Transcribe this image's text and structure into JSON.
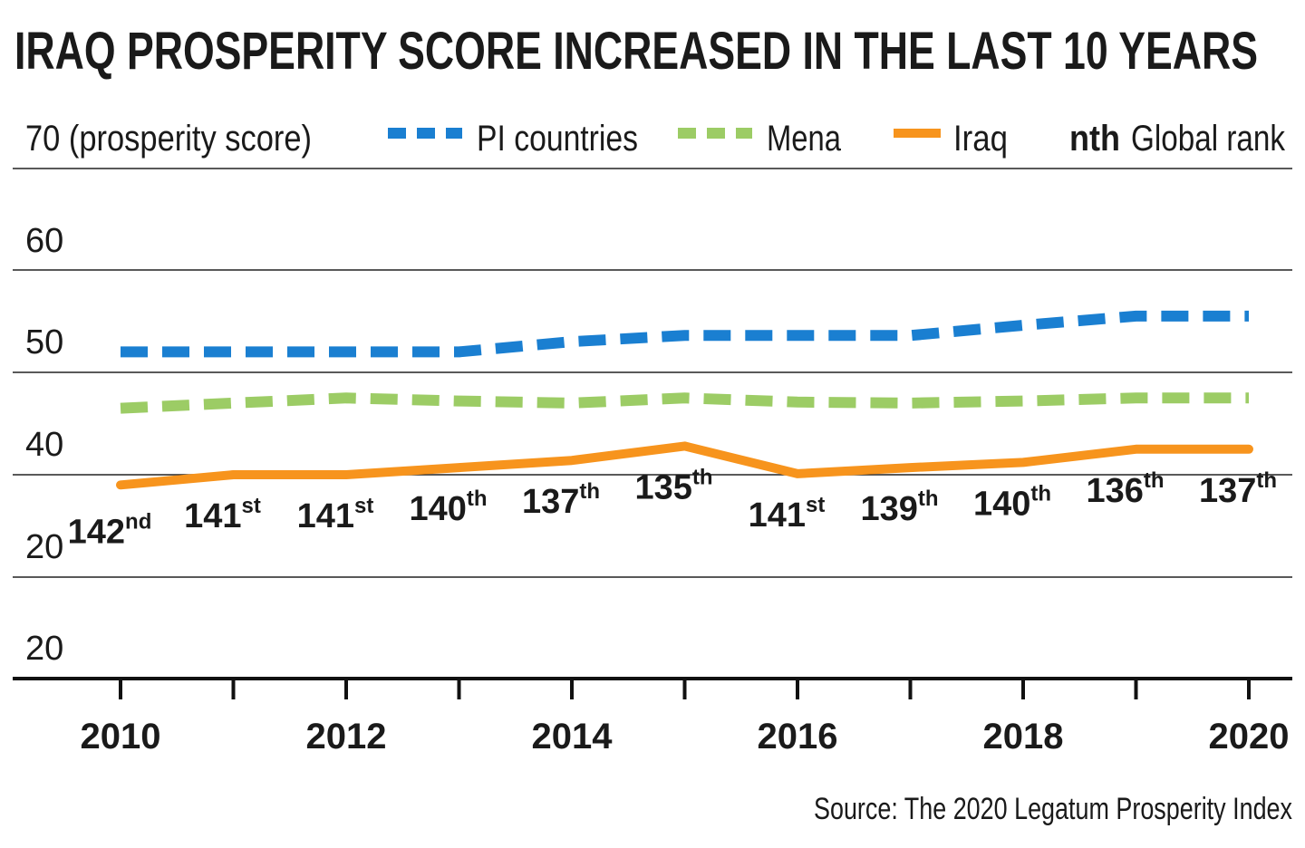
{
  "chart_data": {
    "type": "line",
    "title": "IRAQ PROSPERITY SCORE INCREASED IN THE LAST 10 YEARS",
    "ylabel": "70 (prosperity score)",
    "y_ticks": [
      "20",
      "20",
      "40",
      "50",
      "60"
    ],
    "x": [
      2010,
      2011,
      2012,
      2013,
      2014,
      2015,
      2016,
      2017,
      2018,
      2019,
      2020
    ],
    "x_tick_labels": [
      "2010",
      "2012",
      "2014",
      "2016",
      "2018",
      "2020"
    ],
    "legend": {
      "placement": "top",
      "rank_marker": "nth",
      "rank_label": "Global rank"
    },
    "series": [
      {
        "name": "PI countries",
        "style": "dashed",
        "color": "#1a7fd1",
        "values": [
          52.0,
          52.0,
          52.0,
          52.0,
          53.0,
          53.6,
          53.6,
          53.6,
          54.6,
          55.5,
          55.5
        ]
      },
      {
        "name": "Mena",
        "style": "dashed",
        "color": "#9ccc65",
        "values": [
          46.5,
          47.0,
          47.5,
          47.2,
          47.0,
          47.5,
          47.1,
          47.0,
          47.2,
          47.5,
          47.5
        ]
      },
      {
        "name": "Iraq",
        "style": "solid",
        "color": "#f7941d",
        "values": [
          39.0,
          40.0,
          40.0,
          40.7,
          41.4,
          42.8,
          40.1,
          40.7,
          41.2,
          42.5,
          42.5
        ],
        "ranks": [
          {
            "n": "142",
            "sfx": "nd"
          },
          {
            "n": "141",
            "sfx": "st"
          },
          {
            "n": "141",
            "sfx": "st"
          },
          {
            "n": "140",
            "sfx": "th"
          },
          {
            "n": "137",
            "sfx": "th"
          },
          {
            "n": "135",
            "sfx": "th"
          },
          {
            "n": "141",
            "sfx": "st"
          },
          {
            "n": "139",
            "sfx": "th"
          },
          {
            "n": "140",
            "sfx": "th"
          },
          {
            "n": "136",
            "sfx": "th"
          },
          {
            "n": "137",
            "sfx": "th"
          }
        ]
      }
    ],
    "source": "Source: The 2020 Legatum Prosperity Index"
  }
}
